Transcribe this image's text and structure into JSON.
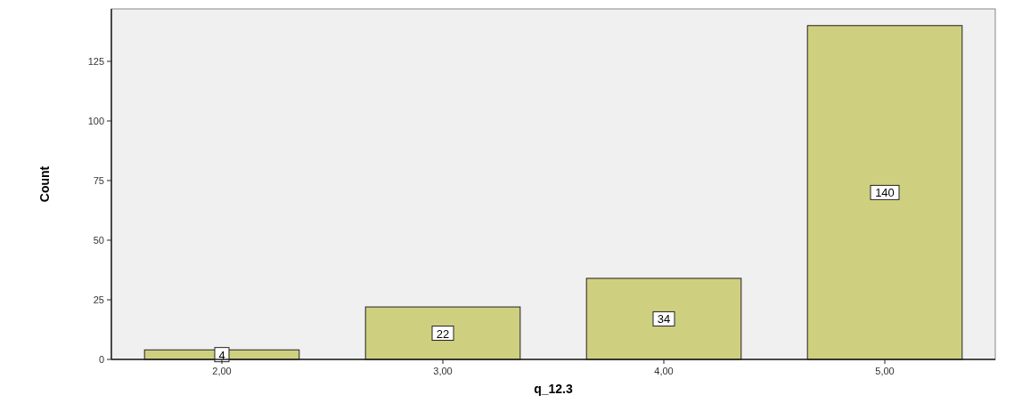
{
  "chart_data": {
    "type": "bar",
    "xlabel": "q_12.3",
    "ylabel": "Count",
    "categories": [
      "2,00",
      "3,00",
      "4,00",
      "5,00"
    ],
    "values": [
      4,
      22,
      34,
      140
    ],
    "color": "#cfcf80",
    "ylim": [
      0,
      147
    ],
    "yticks": [
      0,
      25,
      50,
      75,
      100,
      125
    ],
    "data_labels": true
  }
}
